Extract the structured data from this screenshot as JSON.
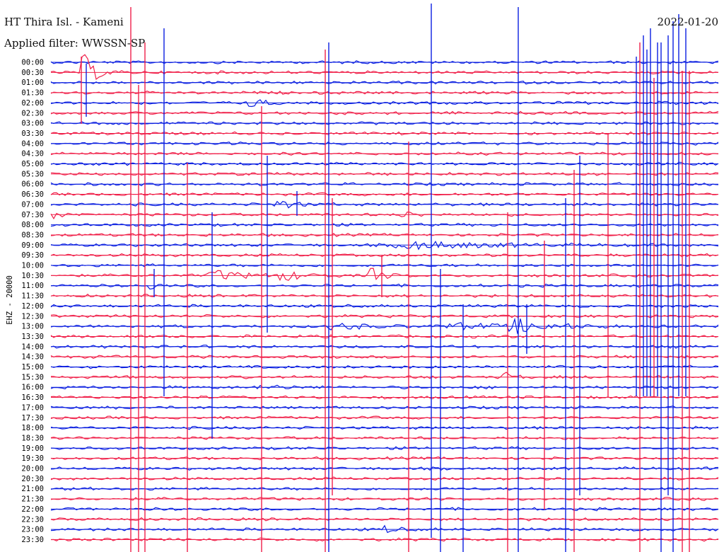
{
  "header": {
    "station": "HT Thira Isl. - Kameni",
    "filter": "Applied filter: WWSSN-SP",
    "date": "2022-01-20"
  },
  "channel_label": "EHZ - 20000",
  "colors": {
    "odd_line": "#0a1ee0",
    "even_line": "#f0204a",
    "background": "#ffffff"
  },
  "chart_data": {
    "type": "line",
    "kind": "helicorder",
    "title": "HT Thira Isl. - Kameni",
    "subtitle": "Applied filter: WWSSN-SP",
    "ylabel": "EHZ - 20000",
    "date": "2022-01-20",
    "row_interval_minutes": 30,
    "grid": true,
    "rows": [
      "00:00",
      "00:30",
      "01:00",
      "01:30",
      "02:00",
      "02:30",
      "03:00",
      "03:30",
      "04:00",
      "04:30",
      "05:00",
      "05:30",
      "06:00",
      "06:30",
      "07:00",
      "07:30",
      "08:00",
      "08:30",
      "09:00",
      "09:30",
      "10:00",
      "10:30",
      "11:00",
      "11:30",
      "12:00",
      "12:30",
      "13:00",
      "13:30",
      "14:00",
      "14:30",
      "15:00",
      "15:30",
      "16:00",
      "16:30",
      "17:00",
      "17:30",
      "18:00",
      "18:30",
      "19:00",
      "19:30",
      "20:00",
      "20:30",
      "21:00",
      "21:30",
      "22:00",
      "22:30",
      "23:00",
      "23:30"
    ],
    "series_colors": [
      "#0a1ee0",
      "#f0204a"
    ],
    "events": [
      {
        "row": "00:30",
        "x": 0.05,
        "amp": 3.5,
        "w": 0.02
      },
      {
        "row": "02:00",
        "x": 0.3,
        "amp": 0.9,
        "w": 0.02
      },
      {
        "row": "07:00",
        "x": 0.34,
        "amp": 0.9,
        "w": 0.03
      },
      {
        "row": "07:30",
        "x": 0.0,
        "amp": 0.9,
        "w": 0.02
      },
      {
        "row": "07:30",
        "x": 0.53,
        "amp": 0.6,
        "w": 0.02
      },
      {
        "row": "09:00",
        "x": 0.55,
        "amp": 0.7,
        "w": 0.12
      },
      {
        "row": "10:30",
        "x": 0.25,
        "amp": 0.9,
        "w": 0.05
      },
      {
        "row": "10:30",
        "x": 0.35,
        "amp": 0.8,
        "w": 0.04
      },
      {
        "row": "10:30",
        "x": 0.48,
        "amp": 1.5,
        "w": 0.02
      },
      {
        "row": "11:00",
        "x": 0.15,
        "amp": 0.7,
        "w": 0.01
      },
      {
        "row": "13:00",
        "x": 0.43,
        "amp": 0.6,
        "w": 0.05
      },
      {
        "row": "13:00",
        "x": 0.61,
        "amp": 0.5,
        "w": 0.1
      },
      {
        "row": "13:00",
        "x": 0.7,
        "amp": 1.2,
        "w": 0.05
      },
      {
        "row": "15:30",
        "x": 0.68,
        "amp": 0.8,
        "w": 0.02
      },
      {
        "row": "16:00",
        "x": 0.32,
        "amp": 0.6,
        "w": 0.03
      },
      {
        "row": "23:00",
        "x": 0.5,
        "amp": 0.6,
        "w": 0.02
      }
    ]
  }
}
